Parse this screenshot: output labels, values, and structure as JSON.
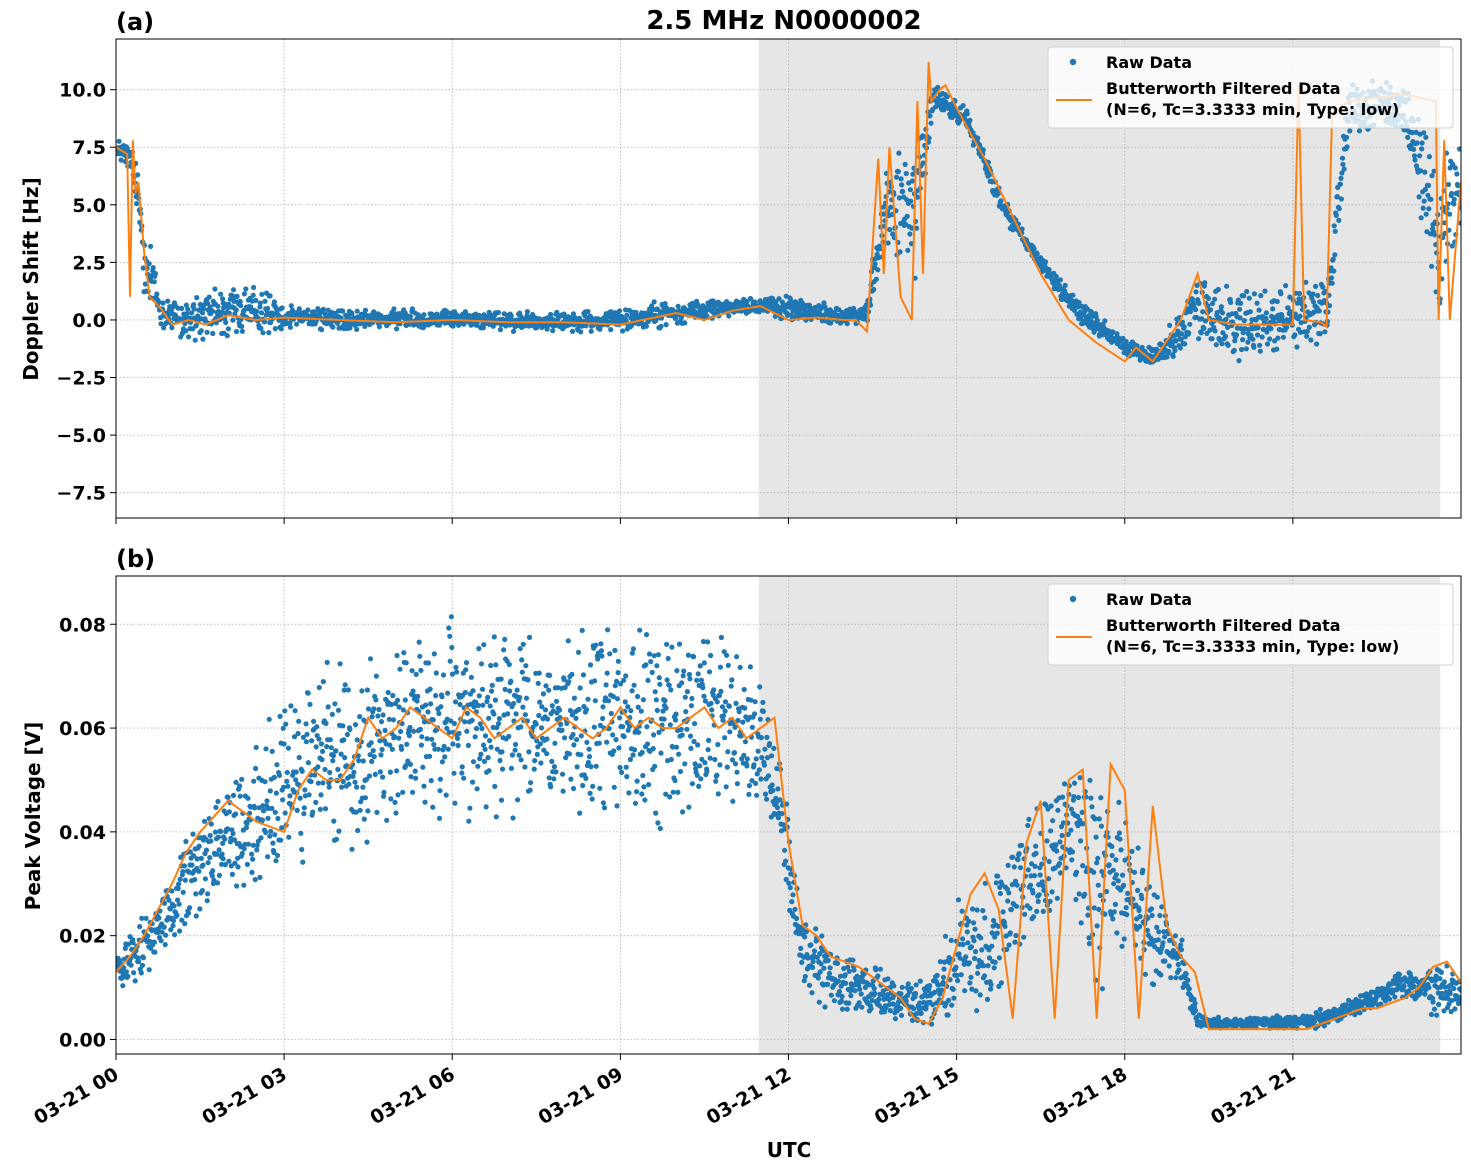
{
  "figure": {
    "title": "2.5 MHz N0000002",
    "xlabel": "UTC",
    "shading_color": "#e6e6e6",
    "raw_color": "#1f77b4",
    "filtered_color": "#ff7f0e"
  },
  "chart_data": [
    {
      "type": "scatter",
      "panel_label": "(a)",
      "title": "2.5 MHz N0000002",
      "xlabel": "UTC",
      "ylabel": "Doppler Shift [Hz]",
      "xlim": [
        0,
        24
      ],
      "ylim": [
        -8.6,
        12.2
      ],
      "yticks": [
        -7.5,
        -5.0,
        -2.5,
        0.0,
        2.5,
        5.0,
        7.5,
        10.0
      ],
      "ytick_labels": [
        "−7.5",
        "−5.0",
        "−2.5",
        "0.0",
        "2.5",
        "5.0",
        "7.5",
        "10.0"
      ],
      "xticks": [
        0,
        3,
        6,
        9,
        12,
        15,
        18,
        21
      ],
      "grid": true,
      "legend_position": "upper right",
      "shaded_region_hours": [
        11.47,
        23.63
      ],
      "series": [
        {
          "name": "Raw Data",
          "kind": "scatter",
          "color": "#1f77b4",
          "envelope": {
            "x": [
              0,
              0.3,
              0.5,
              0.8,
              1.2,
              2,
              3,
              4,
              5,
              6,
              7,
              8,
              9,
              10,
              10.8,
              11.5,
              12,
              13,
              13.4,
              13.8,
              14.2,
              14.6,
              15.2,
              15.8,
              16.5,
              17.2,
              18,
              18.5,
              19,
              19.3,
              20,
              21,
              21.6,
              22,
              23,
              23.6,
              24
            ],
            "lower": [
              7.0,
              6.0,
              1.0,
              -0.5,
              -1.0,
              -1.0,
              -0.5,
              -0.5,
              -0.4,
              -0.4,
              -0.5,
              -0.5,
              -0.6,
              -0.3,
              0.0,
              0.3,
              -0.1,
              -0.3,
              -0.2,
              3.0,
              0.0,
              9.0,
              8.2,
              4.5,
              2.0,
              -0.2,
              -1.6,
              -2.0,
              -1.8,
              -1.0,
              -1.8,
              -1.5,
              -1.2,
              8.0,
              8.0,
              -0.3,
              3.0
            ],
            "upper": [
              7.8,
              7.7,
              5.0,
              1.2,
              1.0,
              1.8,
              1.0,
              0.5,
              0.5,
              0.5,
              0.4,
              0.4,
              0.5,
              1.0,
              0.9,
              1.0,
              1.2,
              0.5,
              1.0,
              7.5,
              8.5,
              10.4,
              9.2,
              5.5,
              2.8,
              0.9,
              -0.7,
              -1.2,
              0.6,
              2.0,
              1.5,
              1.8,
              2.0,
              10.5,
              10.4,
              7.8,
              7.8
            ]
          }
        },
        {
          "name": "Butterworth Filtered Data\n(N=6, Tc=3.3333 min, Type: low)",
          "kind": "line",
          "color": "#ff7f0e",
          "x": [
            0,
            0.2,
            0.25,
            0.3,
            0.35,
            0.4,
            0.5,
            0.6,
            0.8,
            1.0,
            1.3,
            1.6,
            2.0,
            2.5,
            3,
            4,
            5,
            6,
            7,
            8,
            9,
            10,
            10.5,
            11,
            11.5,
            12,
            12.5,
            13,
            13.2,
            13.4,
            13.6,
            13.7,
            13.8,
            14.0,
            14.2,
            14.3,
            14.4,
            14.5,
            14.55,
            14.7,
            14.8,
            15.0,
            15.5,
            16,
            16.5,
            17,
            17.5,
            18,
            18.2,
            18.5,
            19,
            19.3,
            19.5,
            20,
            20.5,
            21,
            21.1,
            21.2,
            21.5,
            21.6,
            21.7,
            22,
            23,
            23.55,
            23.6,
            23.7,
            23.8,
            24
          ],
          "y": [
            7.5,
            7.2,
            1.0,
            7.8,
            5.5,
            6.0,
            3.0,
            1.0,
            0.5,
            -0.2,
            0.0,
            -0.2,
            0.2,
            0.0,
            0.1,
            0.0,
            -0.1,
            0.0,
            -0.1,
            -0.1,
            -0.2,
            0.3,
            0.0,
            0.4,
            0.6,
            0.0,
            0.1,
            0.0,
            0.0,
            -0.5,
            7.0,
            2.0,
            7.5,
            1.0,
            0.0,
            9.5,
            2.0,
            11.2,
            9.5,
            10.0,
            10.2,
            9.2,
            7.0,
            4.5,
            2.0,
            0.0,
            -1.0,
            -1.8,
            -1.2,
            -1.8,
            0.0,
            2.0,
            0.0,
            -0.2,
            -0.2,
            -0.2,
            10.2,
            0.0,
            -0.1,
            -0.3,
            9.0,
            9.5,
            9.8,
            9.5,
            0.0,
            7.8,
            0.0,
            6.0
          ]
        }
      ]
    },
    {
      "type": "scatter",
      "panel_label": "(b)",
      "xlabel": "UTC",
      "ylabel": "Peak Voltage [V]",
      "xlim": [
        0,
        24
      ],
      "ylim": [
        -0.0028,
        0.0893
      ],
      "yticks": [
        0.0,
        0.02,
        0.04,
        0.06,
        0.08
      ],
      "ytick_labels": [
        "0.00",
        "0.02",
        "0.04",
        "0.06",
        "0.08"
      ],
      "xticks": [
        0,
        3,
        6,
        9,
        12,
        15,
        18,
        21
      ],
      "xtick_labels": [
        "03-21 00",
        "03-21 03",
        "03-21 06",
        "03-21 09",
        "03-21 12",
        "03-21 15",
        "03-21 18",
        "03-21 21"
      ],
      "grid": true,
      "legend_position": "upper right",
      "shaded_region_hours": [
        11.47,
        23.63
      ],
      "series": [
        {
          "name": "Raw Data",
          "kind": "scatter",
          "color": "#1f77b4",
          "envelope": {
            "x": [
              0,
              0.5,
              1,
              1.5,
              2,
              2.5,
              3,
              3.5,
              4,
              4.5,
              5,
              5.5,
              6,
              6.5,
              7,
              7.5,
              8,
              8.5,
              9,
              9.5,
              10,
              10.5,
              11,
              11.5,
              11.8,
              12.2,
              12.5,
              13,
              13.5,
              14,
              14.5,
              15,
              15.5,
              16,
              16.5,
              17,
              17.5,
              18,
              18.5,
              19,
              19.3,
              20,
              21,
              21.5,
              22,
              23,
              23.5,
              24
            ],
            "lower": [
              0.008,
              0.012,
              0.018,
              0.022,
              0.025,
              0.028,
              0.028,
              0.032,
              0.035,
              0.038,
              0.042,
              0.04,
              0.042,
              0.04,
              0.04,
              0.042,
              0.04,
              0.04,
              0.04,
              0.038,
              0.04,
              0.042,
              0.045,
              0.045,
              0.04,
              0.01,
              0.006,
              0.005,
              0.004,
              0.003,
              0.002,
              0.003,
              0.006,
              0.01,
              0.02,
              0.03,
              0.004,
              0.015,
              0.008,
              0.008,
              0.002,
              0.002,
              0.002,
              0.002,
              0.004,
              0.008,
              0.004,
              0.004
            ],
            "upper": [
              0.018,
              0.024,
              0.034,
              0.044,
              0.052,
              0.06,
              0.068,
              0.072,
              0.074,
              0.076,
              0.078,
              0.08,
              0.082,
              0.079,
              0.08,
              0.081,
              0.082,
              0.082,
              0.082,
              0.082,
              0.081,
              0.08,
              0.078,
              0.07,
              0.06,
              0.03,
              0.022,
              0.016,
              0.015,
              0.013,
              0.012,
              0.028,
              0.032,
              0.044,
              0.048,
              0.054,
              0.055,
              0.046,
              0.03,
              0.022,
              0.005,
              0.004,
              0.005,
              0.006,
              0.008,
              0.014,
              0.016,
              0.014
            ]
          }
        },
        {
          "name": "Butterworth Filtered Data\n(N=6, Tc=3.3333 min, Type: low)",
          "kind": "line",
          "color": "#ff7f0e",
          "x": [
            0,
            0.25,
            0.5,
            0.75,
            1,
            1.25,
            1.5,
            1.75,
            2,
            2.25,
            2.5,
            2.75,
            3,
            3.25,
            3.5,
            3.75,
            4,
            4.25,
            4.5,
            4.75,
            5,
            5.25,
            5.5,
            5.75,
            6,
            6.25,
            6.5,
            6.75,
            7,
            7.25,
            7.5,
            7.75,
            8,
            8.25,
            8.5,
            8.75,
            9,
            9.25,
            9.5,
            9.75,
            10,
            10.25,
            10.5,
            10.75,
            11,
            11.25,
            11.5,
            11.75,
            12,
            12.25,
            12.5,
            12.75,
            13,
            13.25,
            13.5,
            13.75,
            14,
            14.25,
            14.5,
            14.75,
            15,
            15.25,
            15.5,
            15.75,
            16,
            16.25,
            16.5,
            16.75,
            17,
            17.25,
            17.5,
            17.75,
            18,
            18.25,
            18.5,
            18.75,
            19,
            19.25,
            19.5,
            19.75,
            20,
            20.25,
            20.5,
            20.75,
            21,
            21.25,
            21.5,
            21.75,
            22,
            22.25,
            22.5,
            22.75,
            23,
            23.25,
            23.5,
            23.75,
            24
          ],
          "y": [
            0.013,
            0.016,
            0.02,
            0.025,
            0.03,
            0.036,
            0.04,
            0.043,
            0.046,
            0.044,
            0.042,
            0.041,
            0.04,
            0.048,
            0.052,
            0.05,
            0.05,
            0.054,
            0.062,
            0.058,
            0.06,
            0.064,
            0.062,
            0.06,
            0.058,
            0.064,
            0.062,
            0.058,
            0.06,
            0.062,
            0.058,
            0.06,
            0.062,
            0.06,
            0.058,
            0.06,
            0.064,
            0.06,
            0.062,
            0.06,
            0.06,
            0.062,
            0.064,
            0.06,
            0.062,
            0.058,
            0.06,
            0.062,
            0.038,
            0.022,
            0.02,
            0.016,
            0.015,
            0.014,
            0.012,
            0.01,
            0.008,
            0.004,
            0.003,
            0.008,
            0.018,
            0.028,
            0.032,
            0.025,
            0.004,
            0.038,
            0.046,
            0.004,
            0.05,
            0.052,
            0.004,
            0.053,
            0.048,
            0.004,
            0.045,
            0.022,
            0.016,
            0.013,
            0.002,
            0.002,
            0.002,
            0.002,
            0.002,
            0.002,
            0.002,
            0.002,
            0.003,
            0.004,
            0.005,
            0.006,
            0.006,
            0.007,
            0.008,
            0.01,
            0.014,
            0.015,
            0.011
          ]
        }
      ]
    }
  ]
}
